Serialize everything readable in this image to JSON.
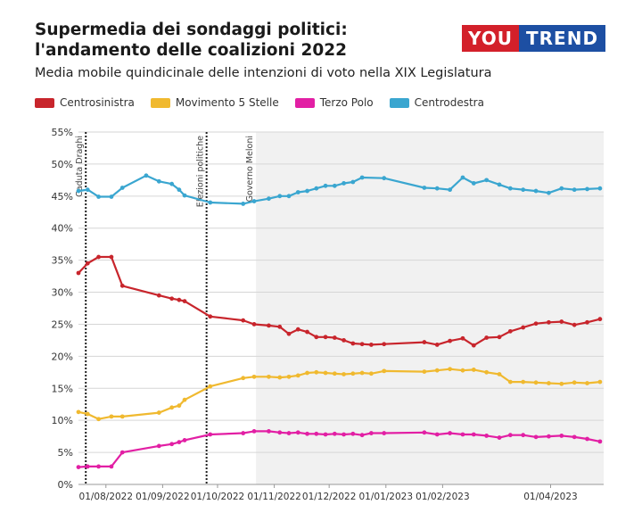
{
  "header": {
    "title": "Supermedia dei sondaggi politici: l'andamento delle coalizioni 2022",
    "subtitle": "Media mobile quindicinale delle intenzioni di voto nella XIX Legislatura"
  },
  "logo": {
    "part1": "YOU",
    "part2": "TREND",
    "color1": "#d3202a",
    "color2": "#1d4fa3"
  },
  "chart_data": {
    "type": "line",
    "x_unit": "date",
    "ylim": [
      0,
      55
    ],
    "yticks": [
      0,
      5,
      10,
      15,
      20,
      25,
      30,
      35,
      40,
      45,
      50,
      55
    ],
    "ytick_labels": [
      "0%",
      "5%",
      "10%",
      "15%",
      "20%",
      "25%",
      "30%",
      "35%",
      "40%",
      "45%",
      "50%",
      "55%"
    ],
    "xlim": [
      "2022-07-17",
      "2023-04-30"
    ],
    "xticks": [
      "2022-08-01",
      "2022-09-01",
      "2022-10-01",
      "2022-11-01",
      "2022-12-01",
      "2023-01-01",
      "2023-02-01",
      "2023-04-01"
    ],
    "xtick_labels": [
      "01/08/2022",
      "01/09/2022",
      "01/10/2022",
      "01/11/2022",
      "01/12/2022",
      "01/01/2023",
      "01/02/2023",
      "01/04/2023"
    ],
    "grid": true,
    "legend_position": "top-left",
    "shaded_region": {
      "from": "2022-10-22",
      "to": "2023-04-30"
    },
    "annotations": [
      {
        "date": "2022-07-21",
        "label": "Caduta Draghi",
        "style": "dotted"
      },
      {
        "date": "2022-09-25",
        "label": "Elezioni politiche",
        "style": "dotted"
      },
      {
        "date": "2022-10-22",
        "label": "Governo Meloni",
        "style": "edge"
      }
    ],
    "series": [
      {
        "name": "Centrosinistra",
        "color": "#c8252c",
        "x": [
          "2022-07-17",
          "2022-07-22",
          "2022-07-28",
          "2022-08-04",
          "2022-08-10",
          "2022-08-30",
          "2022-09-06",
          "2022-09-10",
          "2022-09-13",
          "2022-09-27",
          "2022-10-15",
          "2022-10-21",
          "2022-10-29",
          "2022-11-04",
          "2022-11-09",
          "2022-11-14",
          "2022-11-19",
          "2022-11-24",
          "2022-11-29",
          "2022-12-04",
          "2022-12-09",
          "2022-12-14",
          "2022-12-19",
          "2022-12-24",
          "2022-12-31",
          "2023-01-22",
          "2023-01-29",
          "2023-02-05",
          "2023-02-12",
          "2023-02-18",
          "2023-02-25",
          "2023-03-04",
          "2023-03-10",
          "2023-03-17",
          "2023-03-24",
          "2023-03-31",
          "2023-04-07",
          "2023-04-14",
          "2023-04-21",
          "2023-04-28"
        ],
        "values": [
          33.0,
          34.5,
          35.5,
          35.5,
          31.0,
          29.5,
          29.0,
          28.8,
          28.6,
          26.2,
          25.6,
          25.0,
          24.8,
          24.6,
          23.5,
          24.2,
          23.8,
          23.0,
          23.0,
          22.9,
          22.5,
          22.0,
          21.9,
          21.8,
          21.9,
          22.2,
          21.8,
          22.4,
          22.8,
          21.7,
          22.9,
          23.0,
          23.9,
          24.5,
          25.1,
          25.3,
          25.4,
          24.9,
          25.3,
          25.8
        ]
      },
      {
        "name": "Movimento 5 Stelle",
        "color": "#f0b92f",
        "x": [
          "2022-07-17",
          "2022-07-22",
          "2022-07-28",
          "2022-08-04",
          "2022-08-10",
          "2022-08-30",
          "2022-09-06",
          "2022-09-10",
          "2022-09-13",
          "2022-09-27",
          "2022-10-15",
          "2022-10-21",
          "2022-10-29",
          "2022-11-04",
          "2022-11-09",
          "2022-11-14",
          "2022-11-19",
          "2022-11-24",
          "2022-11-29",
          "2022-12-04",
          "2022-12-09",
          "2022-12-14",
          "2022-12-19",
          "2022-12-24",
          "2022-12-31",
          "2023-01-22",
          "2023-01-29",
          "2023-02-05",
          "2023-02-12",
          "2023-02-18",
          "2023-02-25",
          "2023-03-04",
          "2023-03-10",
          "2023-03-17",
          "2023-03-24",
          "2023-03-31",
          "2023-04-07",
          "2023-04-14",
          "2023-04-21",
          "2023-04-28"
        ],
        "values": [
          11.3,
          11.0,
          10.2,
          10.6,
          10.6,
          11.2,
          12.0,
          12.3,
          13.2,
          15.3,
          16.6,
          16.8,
          16.8,
          16.7,
          16.8,
          17.0,
          17.4,
          17.5,
          17.4,
          17.3,
          17.2,
          17.3,
          17.4,
          17.3,
          17.7,
          17.6,
          17.8,
          18.0,
          17.8,
          17.9,
          17.5,
          17.2,
          16.0,
          16.0,
          15.9,
          15.8,
          15.7,
          15.9,
          15.8,
          16.0
        ]
      },
      {
        "name": "Terzo Polo",
        "color": "#e21fa4",
        "x": [
          "2022-07-17",
          "2022-07-22",
          "2022-07-28",
          "2022-08-04",
          "2022-08-10",
          "2022-08-30",
          "2022-09-06",
          "2022-09-10",
          "2022-09-13",
          "2022-09-27",
          "2022-10-15",
          "2022-10-21",
          "2022-10-29",
          "2022-11-04",
          "2022-11-09",
          "2022-11-14",
          "2022-11-19",
          "2022-11-24",
          "2022-11-29",
          "2022-12-04",
          "2022-12-09",
          "2022-12-14",
          "2022-12-19",
          "2022-12-24",
          "2022-12-31",
          "2023-01-22",
          "2023-01-29",
          "2023-02-05",
          "2023-02-12",
          "2023-02-18",
          "2023-02-25",
          "2023-03-04",
          "2023-03-10",
          "2023-03-17",
          "2023-03-24",
          "2023-03-31",
          "2023-04-07",
          "2023-04-14",
          "2023-04-21",
          "2023-04-28"
        ],
        "values": [
          2.7,
          2.8,
          2.8,
          2.8,
          5.0,
          6.0,
          6.3,
          6.6,
          6.9,
          7.8,
          8.0,
          8.3,
          8.3,
          8.1,
          8.0,
          8.1,
          7.9,
          7.9,
          7.8,
          7.9,
          7.8,
          7.9,
          7.7,
          8.0,
          8.0,
          8.1,
          7.8,
          8.0,
          7.8,
          7.8,
          7.6,
          7.3,
          7.7,
          7.7,
          7.4,
          7.5,
          7.6,
          7.4,
          7.1,
          6.7
        ]
      },
      {
        "name": "Centrodestra",
        "color": "#3aa6d0",
        "x": [
          "2022-07-17",
          "2022-07-22",
          "2022-07-28",
          "2022-08-04",
          "2022-08-10",
          "2022-08-23",
          "2022-08-30",
          "2022-09-06",
          "2022-09-10",
          "2022-09-13",
          "2022-09-27",
          "2022-10-15",
          "2022-10-21",
          "2022-10-29",
          "2022-11-04",
          "2022-11-09",
          "2022-11-14",
          "2022-11-19",
          "2022-11-24",
          "2022-11-29",
          "2022-12-04",
          "2022-12-09",
          "2022-12-14",
          "2022-12-19",
          "2022-12-31",
          "2023-01-22",
          "2023-01-29",
          "2023-02-05",
          "2023-02-12",
          "2023-02-18",
          "2023-02-25",
          "2023-03-04",
          "2023-03-10",
          "2023-03-17",
          "2023-03-24",
          "2023-03-31",
          "2023-04-07",
          "2023-04-14",
          "2023-04-21",
          "2023-04-28"
        ],
        "values": [
          45.8,
          46.0,
          44.9,
          44.9,
          46.3,
          48.2,
          47.3,
          46.9,
          46.0,
          45.1,
          44.0,
          43.8,
          44.2,
          44.6,
          45.0,
          45.0,
          45.6,
          45.8,
          46.2,
          46.6,
          46.6,
          47.0,
          47.2,
          47.9,
          47.8,
          46.3,
          46.2,
          46.0,
          47.9,
          47.0,
          47.5,
          46.8,
          46.2,
          46.0,
          45.8,
          45.5,
          46.2,
          46.0,
          46.1,
          46.2
        ]
      }
    ]
  }
}
